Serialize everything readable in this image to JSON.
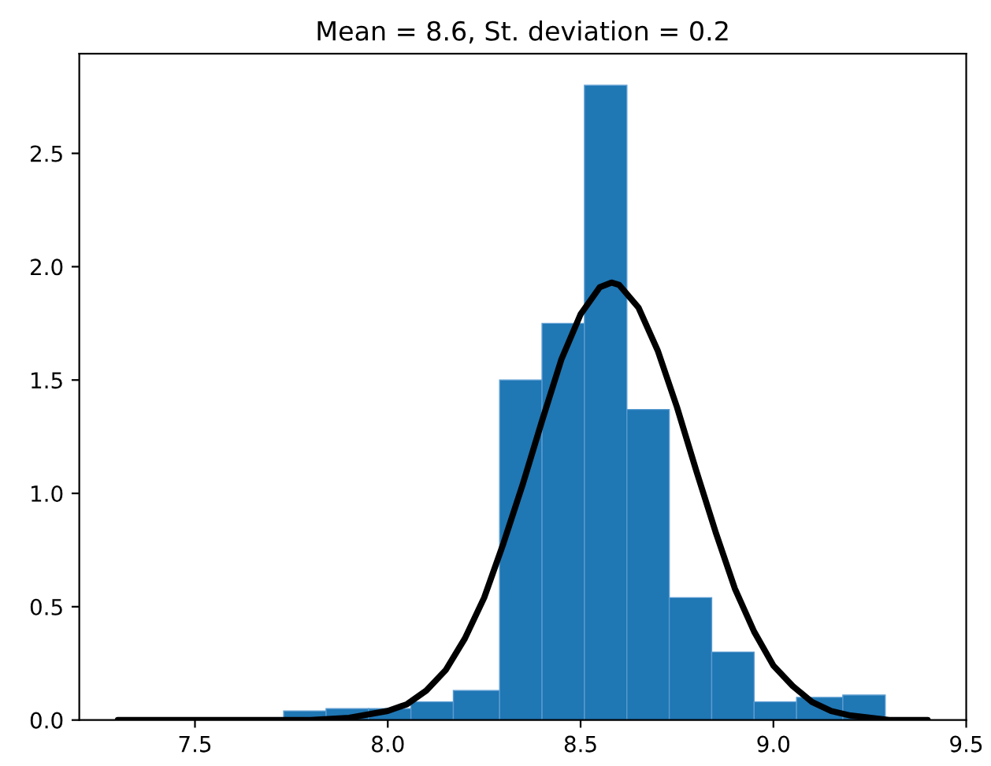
{
  "chart_data": {
    "type": "histogram",
    "title": "Mean = 8.6, St. deviation = 0.2",
    "bins": [
      7.39,
      7.5,
      7.62,
      7.73,
      7.84,
      7.95,
      8.06,
      8.17,
      8.29,
      8.4,
      8.51,
      8.62,
      8.73,
      8.84,
      8.95,
      9.06,
      9.18,
      9.29
    ],
    "values": [
      0.01,
      0.01,
      0.01,
      0.04,
      0.05,
      0.05,
      0.08,
      0.13,
      1.5,
      1.75,
      2.8,
      1.37,
      0.54,
      0.3,
      0.08,
      0.1,
      0.11
    ],
    "color": "#1f77b4",
    "series": [
      {
        "type": "line",
        "color": "#000000",
        "x": [
          7.3,
          7.8,
          7.9,
          8.0,
          8.05,
          8.1,
          8.15,
          8.2,
          8.25,
          8.3,
          8.35,
          8.4,
          8.45,
          8.5,
          8.55,
          8.58,
          8.6,
          8.65,
          8.7,
          8.75,
          8.8,
          8.85,
          8.9,
          8.95,
          9.0,
          9.05,
          9.1,
          9.15,
          9.2,
          9.3,
          9.4
        ],
        "values": [
          0.0,
          0.0,
          0.01,
          0.04,
          0.07,
          0.13,
          0.22,
          0.36,
          0.54,
          0.78,
          1.04,
          1.32,
          1.59,
          1.79,
          1.91,
          1.93,
          1.92,
          1.82,
          1.63,
          1.38,
          1.1,
          0.83,
          0.58,
          0.39,
          0.24,
          0.15,
          0.08,
          0.04,
          0.02,
          0.0,
          0.0
        ]
      }
    ],
    "xlim": [
      7.2,
      9.5
    ],
    "ylim": [
      0,
      2.94
    ],
    "xticks": [
      {
        "value": 7.5,
        "label": "7.5"
      },
      {
        "value": 8.0,
        "label": "8.0"
      },
      {
        "value": 8.5,
        "label": "8.5"
      },
      {
        "value": 9.0,
        "label": "9.0"
      },
      {
        "value": 9.5,
        "label": "9.5"
      }
    ],
    "yticks": [
      {
        "value": 0,
        "label": "0.0"
      },
      {
        "value": 0.5,
        "label": "0.5"
      },
      {
        "value": 1.0,
        "label": "1.0"
      },
      {
        "value": 1.5,
        "label": "1.5"
      },
      {
        "value": 2.0,
        "label": "2.0"
      },
      {
        "value": 2.5,
        "label": "2.5"
      }
    ],
    "grid": false
  }
}
